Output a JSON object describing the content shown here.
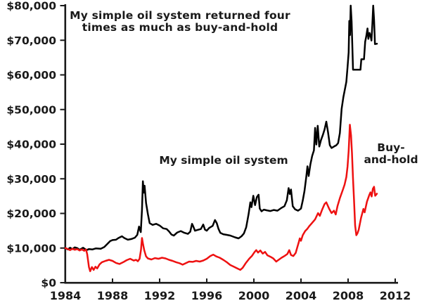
{
  "title": {
    "line1": "My simple oil system returned four",
    "line2": "times as much as buy-and-hold"
  },
  "labels": {
    "system": "My simple oil system",
    "buyhold_line1": "Buy-",
    "buyhold_line2": "and-hold"
  },
  "colors": {
    "system_line": "#000000",
    "buyhold_line": "#ee1111",
    "buyhold_label": "#ee1111",
    "axis": "#1a1a1a",
    "background": "#ffffff"
  },
  "chart_data": {
    "type": "line",
    "title": "My simple oil system returned four times as much as buy-and-hold",
    "xlabel": "",
    "ylabel": "",
    "grid": false,
    "legend_position": "inline-annotations",
    "xlim": [
      1984,
      2012.6
    ],
    "ylim": [
      0,
      80000
    ],
    "x_ticks": [
      {
        "value": 1984,
        "label": "1984"
      },
      {
        "value": 1988,
        "label": "1988"
      },
      {
        "value": 1992,
        "label": "1992"
      },
      {
        "value": 1996,
        "label": "1996"
      },
      {
        "value": 2000,
        "label": "2000"
      },
      {
        "value": 2004,
        "label": "2004"
      },
      {
        "value": 2008,
        "label": "2008"
      },
      {
        "value": 2012,
        "label": "2012"
      }
    ],
    "y_ticks": [
      {
        "value": 0,
        "label": "$0"
      },
      {
        "value": 10000,
        "label": "$10,000"
      },
      {
        "value": 20000,
        "label": "$20,000"
      },
      {
        "value": 30000,
        "label": "$30,000"
      },
      {
        "value": 40000,
        "label": "$40,000"
      },
      {
        "value": 50000,
        "label": "$50,000"
      },
      {
        "value": 60000,
        "label": "$60,000"
      },
      {
        "value": 70000,
        "label": "$70,000"
      },
      {
        "value": 80000,
        "label": "$80,000"
      }
    ],
    "series": [
      {
        "name": "My simple oil system",
        "key": "system",
        "color": "#000000",
        "points": [
          [
            1984.0,
            10000
          ],
          [
            1984.2,
            9600
          ],
          [
            1984.4,
            10100
          ],
          [
            1984.6,
            9700
          ],
          [
            1984.8,
            10200
          ],
          [
            1985.0,
            10000
          ],
          [
            1985.2,
            9500
          ],
          [
            1985.5,
            10100
          ],
          [
            1985.8,
            9400
          ],
          [
            1986.0,
            9700
          ],
          [
            1986.3,
            9600
          ],
          [
            1986.6,
            9900
          ],
          [
            1987.0,
            9800
          ],
          [
            1987.3,
            10300
          ],
          [
            1987.6,
            11300
          ],
          [
            1987.8,
            12000
          ],
          [
            1988.0,
            12300
          ],
          [
            1988.3,
            12400
          ],
          [
            1988.5,
            12900
          ],
          [
            1988.8,
            13400
          ],
          [
            1989.0,
            12900
          ],
          [
            1989.3,
            12400
          ],
          [
            1989.6,
            12600
          ],
          [
            1989.9,
            13000
          ],
          [
            1990.1,
            13800
          ],
          [
            1990.25,
            16200
          ],
          [
            1990.4,
            14600
          ],
          [
            1990.5,
            21000
          ],
          [
            1990.58,
            29300
          ],
          [
            1990.65,
            26000
          ],
          [
            1990.72,
            28000
          ],
          [
            1990.85,
            23000
          ],
          [
            1991.0,
            19800
          ],
          [
            1991.15,
            17200
          ],
          [
            1991.4,
            16700
          ],
          [
            1991.7,
            17000
          ],
          [
            1992.0,
            16500
          ],
          [
            1992.3,
            15700
          ],
          [
            1992.6,
            15500
          ],
          [
            1992.8,
            14800
          ],
          [
            1993.0,
            13900
          ],
          [
            1993.2,
            13600
          ],
          [
            1993.5,
            14500
          ],
          [
            1993.8,
            14900
          ],
          [
            1994.1,
            14400
          ],
          [
            1994.4,
            14100
          ],
          [
            1994.6,
            14700
          ],
          [
            1994.75,
            17000
          ],
          [
            1994.85,
            16300
          ],
          [
            1995.0,
            15000
          ],
          [
            1995.2,
            15200
          ],
          [
            1995.5,
            15500
          ],
          [
            1995.7,
            16800
          ],
          [
            1995.85,
            15300
          ],
          [
            1996.0,
            15000
          ],
          [
            1996.2,
            15800
          ],
          [
            1996.5,
            16400
          ],
          [
            1996.7,
            18100
          ],
          [
            1996.85,
            17200
          ],
          [
            1997.0,
            15500
          ],
          [
            1997.15,
            14400
          ],
          [
            1997.4,
            14000
          ],
          [
            1997.7,
            13800
          ],
          [
            1998.0,
            13600
          ],
          [
            1998.4,
            13100
          ],
          [
            1998.7,
            12800
          ],
          [
            1998.95,
            13400
          ],
          [
            1999.15,
            14200
          ],
          [
            1999.35,
            16000
          ],
          [
            1999.55,
            19800
          ],
          [
            1999.7,
            23200
          ],
          [
            1999.8,
            21800
          ],
          [
            1999.95,
            25100
          ],
          [
            2000.1,
            22400
          ],
          [
            2000.25,
            24700
          ],
          [
            2000.4,
            25400
          ],
          [
            2000.5,
            21400
          ],
          [
            2000.65,
            20600
          ],
          [
            2000.85,
            21100
          ],
          [
            2001.1,
            20900
          ],
          [
            2001.4,
            20700
          ],
          [
            2001.7,
            21000
          ],
          [
            2002.0,
            20800
          ],
          [
            2002.3,
            21500
          ],
          [
            2002.6,
            22100
          ],
          [
            2002.8,
            23800
          ],
          [
            2002.95,
            27300
          ],
          [
            2003.05,
            25600
          ],
          [
            2003.15,
            26900
          ],
          [
            2003.3,
            22100
          ],
          [
            2003.5,
            21200
          ],
          [
            2003.75,
            20800
          ],
          [
            2004.0,
            21400
          ],
          [
            2004.15,
            23700
          ],
          [
            2004.3,
            26500
          ],
          [
            2004.45,
            30500
          ],
          [
            2004.55,
            33600
          ],
          [
            2004.65,
            30800
          ],
          [
            2004.8,
            34200
          ],
          [
            2004.95,
            36600
          ],
          [
            2005.1,
            38200
          ],
          [
            2005.2,
            44700
          ],
          [
            2005.3,
            39900
          ],
          [
            2005.42,
            45300
          ],
          [
            2005.55,
            39300
          ],
          [
            2005.7,
            41200
          ],
          [
            2005.85,
            42600
          ],
          [
            2006.0,
            44200
          ],
          [
            2006.15,
            46500
          ],
          [
            2006.3,
            43400
          ],
          [
            2006.45,
            39700
          ],
          [
            2006.6,
            38900
          ],
          [
            2006.8,
            39300
          ],
          [
            2007.0,
            39700
          ],
          [
            2007.15,
            40300
          ],
          [
            2007.3,
            43200
          ],
          [
            2007.45,
            50200
          ],
          [
            2007.6,
            53600
          ],
          [
            2007.75,
            56200
          ],
          [
            2007.85,
            58000
          ],
          [
            2007.95,
            62200
          ],
          [
            2008.05,
            66500
          ],
          [
            2008.1,
            75600
          ],
          [
            2008.16,
            71500
          ],
          [
            2008.22,
            80000
          ],
          [
            2008.3,
            75400
          ],
          [
            2008.36,
            68500
          ],
          [
            2008.42,
            61500
          ],
          [
            2008.75,
            61500
          ],
          [
            2009.05,
            61500
          ],
          [
            2009.12,
            64500
          ],
          [
            2009.35,
            64500
          ],
          [
            2009.45,
            69600
          ],
          [
            2009.55,
            71300
          ],
          [
            2009.65,
            73400
          ],
          [
            2009.72,
            70400
          ],
          [
            2009.82,
            72100
          ],
          [
            2009.92,
            71000
          ],
          [
            2009.98,
            69900
          ],
          [
            2010.06,
            74600
          ],
          [
            2010.13,
            80000
          ],
          [
            2010.2,
            76000
          ],
          [
            2010.28,
            68900
          ],
          [
            2010.45,
            69000
          ]
        ]
      },
      {
        "name": "Buy-and-hold",
        "key": "buyhold",
        "color": "#ee1111",
        "points": [
          [
            1984.0,
            10000
          ],
          [
            1984.2,
            9700
          ],
          [
            1984.4,
            9400
          ],
          [
            1984.6,
            9800
          ],
          [
            1984.8,
            9500
          ],
          [
            1985.0,
            9700
          ],
          [
            1985.2,
            9300
          ],
          [
            1985.4,
            9600
          ],
          [
            1985.6,
            9200
          ],
          [
            1985.75,
            9600
          ],
          [
            1985.85,
            8200
          ],
          [
            1986.0,
            4500
          ],
          [
            1986.1,
            3300
          ],
          [
            1986.25,
            4500
          ],
          [
            1986.4,
            3700
          ],
          [
            1986.55,
            4600
          ],
          [
            1986.7,
            4100
          ],
          [
            1986.9,
            5300
          ],
          [
            1987.1,
            5900
          ],
          [
            1987.4,
            6300
          ],
          [
            1987.7,
            6600
          ],
          [
            1988.0,
            6300
          ],
          [
            1988.3,
            5700
          ],
          [
            1988.6,
            5400
          ],
          [
            1988.9,
            5900
          ],
          [
            1989.2,
            6500
          ],
          [
            1989.5,
            6900
          ],
          [
            1989.8,
            6400
          ],
          [
            1990.0,
            6600
          ],
          [
            1990.15,
            6200
          ],
          [
            1990.3,
            6900
          ],
          [
            1990.42,
            9500
          ],
          [
            1990.5,
            12900
          ],
          [
            1990.6,
            11000
          ],
          [
            1990.7,
            9300
          ],
          [
            1990.85,
            7600
          ],
          [
            1991.0,
            7000
          ],
          [
            1991.3,
            6700
          ],
          [
            1991.6,
            7100
          ],
          [
            1991.9,
            6900
          ],
          [
            1992.2,
            7200
          ],
          [
            1992.5,
            7000
          ],
          [
            1992.8,
            6600
          ],
          [
            1993.1,
            6300
          ],
          [
            1993.4,
            5900
          ],
          [
            1993.7,
            5600
          ],
          [
            1993.95,
            5200
          ],
          [
            1994.2,
            5600
          ],
          [
            1994.5,
            6100
          ],
          [
            1994.8,
            6000
          ],
          [
            1995.1,
            6300
          ],
          [
            1995.4,
            6100
          ],
          [
            1995.7,
            6400
          ],
          [
            1996.0,
            6900
          ],
          [
            1996.3,
            7700
          ],
          [
            1996.55,
            8100
          ],
          [
            1996.8,
            7600
          ],
          [
            1997.1,
            7200
          ],
          [
            1997.4,
            6600
          ],
          [
            1997.7,
            5900
          ],
          [
            1998.0,
            5100
          ],
          [
            1998.3,
            4600
          ],
          [
            1998.6,
            4100
          ],
          [
            1998.85,
            3700
          ],
          [
            1999.05,
            4300
          ],
          [
            1999.3,
            5600
          ],
          [
            1999.6,
            6900
          ],
          [
            1999.85,
            7800
          ],
          [
            2000.05,
            8800
          ],
          [
            2000.2,
            9400
          ],
          [
            2000.35,
            8700
          ],
          [
            2000.55,
            9300
          ],
          [
            2000.75,
            8400
          ],
          [
            2000.95,
            8900
          ],
          [
            2001.15,
            7900
          ],
          [
            2001.4,
            7500
          ],
          [
            2001.65,
            7000
          ],
          [
            2001.9,
            6100
          ],
          [
            2002.1,
            6600
          ],
          [
            2002.35,
            7200
          ],
          [
            2002.6,
            7700
          ],
          [
            2002.85,
            8300
          ],
          [
            2003.0,
            9400
          ],
          [
            2003.15,
            8000
          ],
          [
            2003.35,
            7700
          ],
          [
            2003.55,
            8600
          ],
          [
            2003.7,
            10400
          ],
          [
            2003.8,
            11500
          ],
          [
            2003.9,
            12800
          ],
          [
            2004.0,
            12100
          ],
          [
            2004.15,
            13700
          ],
          [
            2004.35,
            14900
          ],
          [
            2004.55,
            15600
          ],
          [
            2004.7,
            16300
          ],
          [
            2004.9,
            17100
          ],
          [
            2005.2,
            18300
          ],
          [
            2005.45,
            20100
          ],
          [
            2005.6,
            19300
          ],
          [
            2005.8,
            21100
          ],
          [
            2006.0,
            22700
          ],
          [
            2006.15,
            23200
          ],
          [
            2006.4,
            21300
          ],
          [
            2006.6,
            20100
          ],
          [
            2006.8,
            20800
          ],
          [
            2006.95,
            19700
          ],
          [
            2007.1,
            22100
          ],
          [
            2007.3,
            24400
          ],
          [
            2007.55,
            26800
          ],
          [
            2007.7,
            28300
          ],
          [
            2007.85,
            30500
          ],
          [
            2007.95,
            33500
          ],
          [
            2008.05,
            38000
          ],
          [
            2008.15,
            45600
          ],
          [
            2008.25,
            42500
          ],
          [
            2008.33,
            37500
          ],
          [
            2008.42,
            30000
          ],
          [
            2008.5,
            24000
          ],
          [
            2008.6,
            16500
          ],
          [
            2008.7,
            13700
          ],
          [
            2008.8,
            14300
          ],
          [
            2008.9,
            15300
          ],
          [
            2009.1,
            18700
          ],
          [
            2009.3,
            21300
          ],
          [
            2009.4,
            20300
          ],
          [
            2009.6,
            23400
          ],
          [
            2009.8,
            25300
          ],
          [
            2009.9,
            26100
          ],
          [
            2010.0,
            24900
          ],
          [
            2010.1,
            27100
          ],
          [
            2010.2,
            27700
          ],
          [
            2010.3,
            25100
          ],
          [
            2010.45,
            25700
          ]
        ]
      }
    ]
  }
}
